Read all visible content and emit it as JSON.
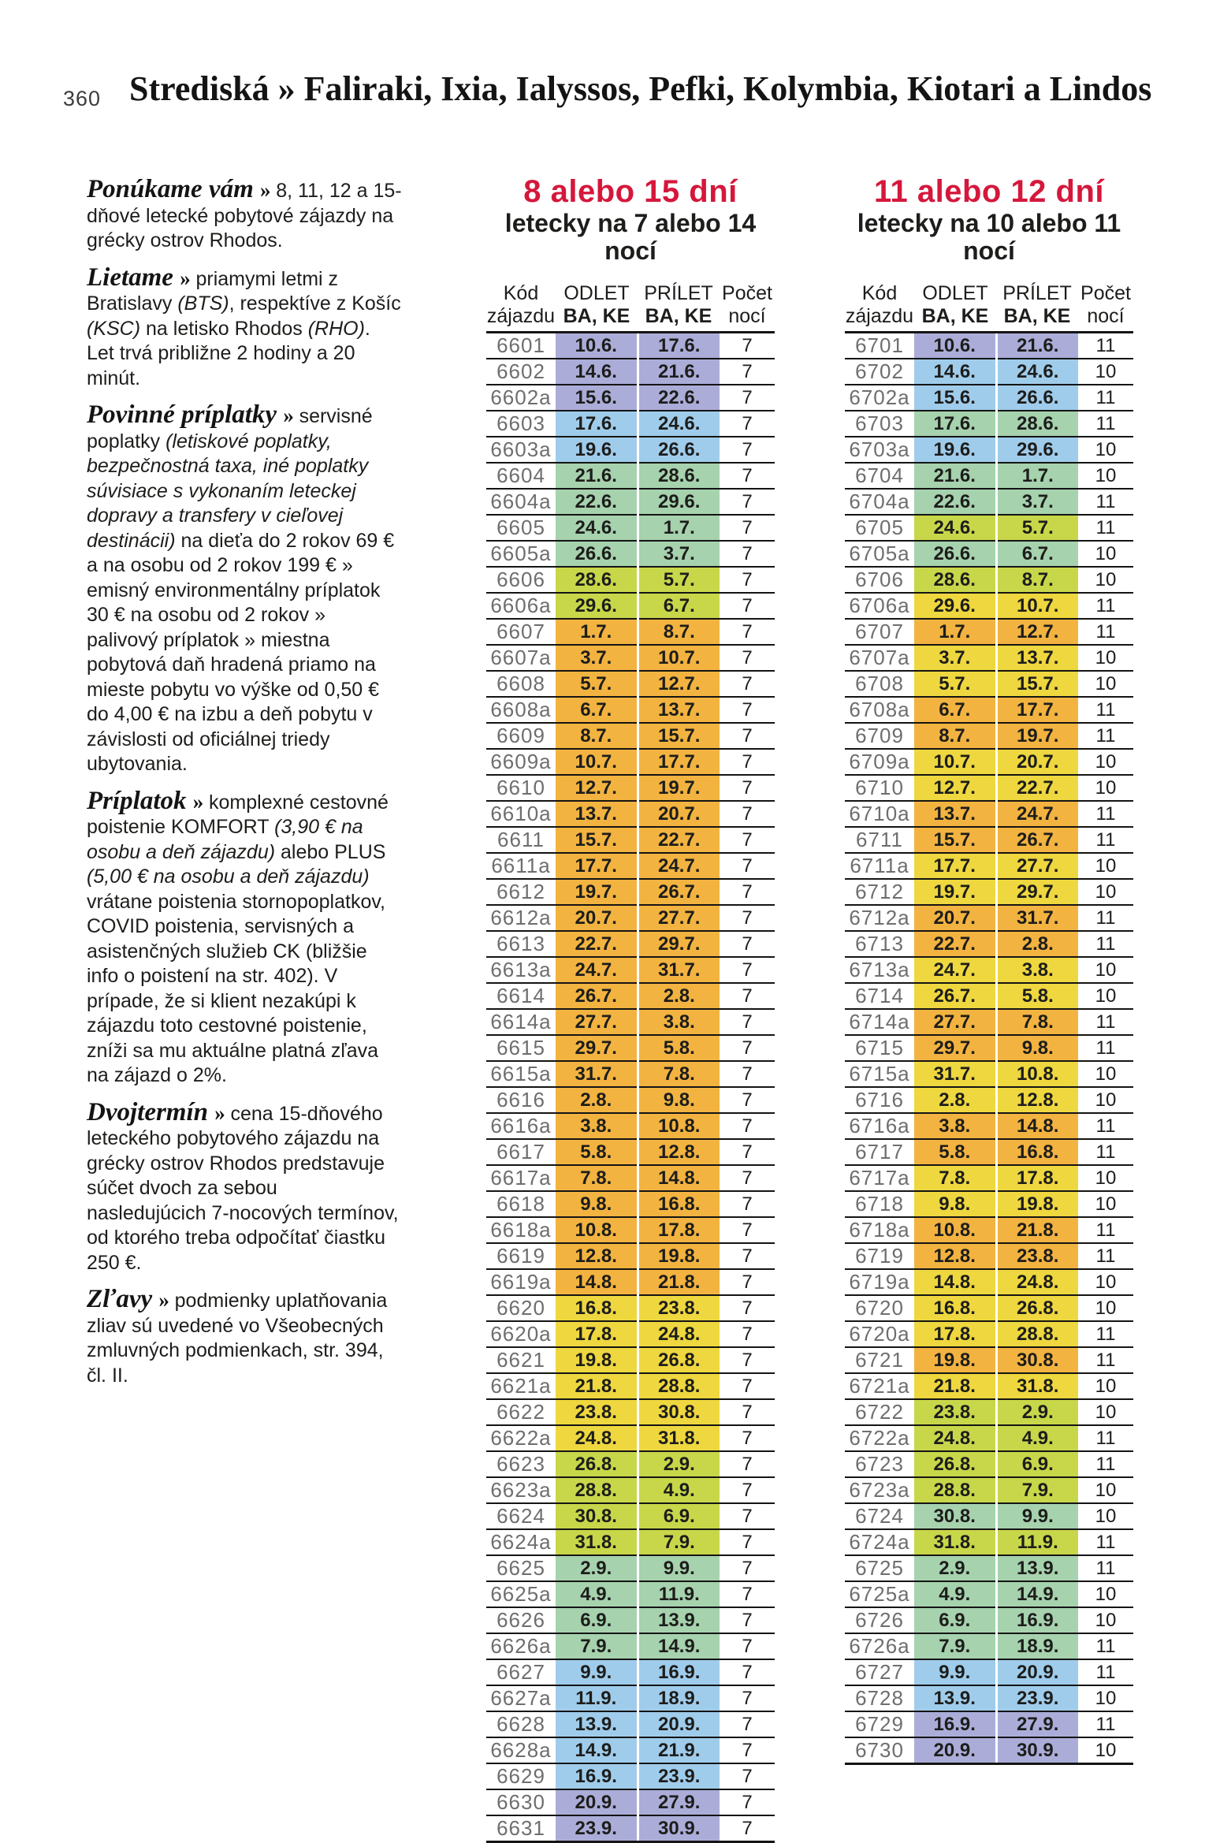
{
  "page": {
    "number": "360",
    "title": "Strediská » Faliraki, Ixia, Ialyssos, Pefki, Kolymbia, Kiotari a Lindos"
  },
  "accent_colors": {
    "title_red": "#d5173b",
    "rule_black": "#141414",
    "code_gray": "#6e6e6e"
  },
  "season_colors": {
    "lavender": "#abadd8",
    "blue": "#a0cceb",
    "green": "#a6d2ae",
    "yellowgreen": "#c8d74a",
    "yellow": "#eed73f",
    "orange": "#f2b340"
  },
  "info_sections": [
    {
      "label": "Ponúkame vám",
      "sep": "»",
      "body": [
        {
          "t": "8, 11, 12 a 15-dňové letecké pobytové zájazdy na grécky ostrov Rhodos.",
          "i": false
        }
      ]
    },
    {
      "label": "Lietame",
      "sep": "»",
      "body": [
        {
          "t": "priamymi letmi z Bratislavy ",
          "i": false
        },
        {
          "t": "(BTS)",
          "i": true
        },
        {
          "t": ", respektíve z Košíc ",
          "i": false
        },
        {
          "t": "(KSC)",
          "i": true
        },
        {
          "t": " na letisko Rhodos ",
          "i": false
        },
        {
          "t": "(RHO)",
          "i": true
        },
        {
          "t": ". Let trvá približne 2 hodiny a 20 minút.",
          "i": false
        }
      ]
    },
    {
      "label": "Povinné príplatky",
      "sep": "»",
      "body": [
        {
          "t": "servisné poplatky ",
          "i": false
        },
        {
          "t": "(letiskové poplatky, bezpečnostná taxa, iné poplatky súvisiace s vykonaním leteckej dopravy a transfery v cieľovej destinácii)",
          "i": true
        },
        {
          "t": " na dieťa do 2 rokov 69 € a na osobu od 2 rokov 199 € » emisný environmentálny príplatok 30 € na osobu od 2 rokov » palivový príplatok » miestna pobytová daň hradená priamo na mieste pobytu vo výške od 0,50 € do 4,00 € na izbu a deň pobytu v závislosti od oficiálnej triedy ubytovania.",
          "i": false
        }
      ]
    },
    {
      "label": "Príplatok",
      "sep": "»",
      "body": [
        {
          "t": "komplexné cestovné poistenie KOMFORT ",
          "i": false
        },
        {
          "t": "(3,90 € na osobu a deň zájazdu)",
          "i": true
        },
        {
          "t": " alebo PLUS ",
          "i": false
        },
        {
          "t": "(5,00 € na osobu a deň zájazdu)",
          "i": true
        },
        {
          "t": " vrátane poistenia stornopoplatkov, COVID poistenia, servisných a asistenčných služieb CK (bližšie info o poistení na str. 402). V prípade, že si klient nezakúpi k zájazdu toto cestovné poistenie, zníži sa mu aktuálne platná zľava na zájazd o 2%.",
          "i": false
        }
      ]
    },
    {
      "label": "Dvojtermín",
      "sep": "»",
      "body": [
        {
          "t": "cena 15-dňového leteckého pobytového zájazdu na grécky ostrov Rhodos predstavuje súčet dvoch za sebou nasledujúcich 7-nocových termínov, od ktorého treba odpočítať čiastku 250 €.",
          "i": false
        }
      ]
    },
    {
      "label": "Zľavy",
      "sep": "»",
      "body": [
        {
          "t": "podmienky uplatňovania zliav sú uvedené vo Všeobecných zmluvných podmienkach, str. 394, čl. II.",
          "i": false
        }
      ]
    }
  ],
  "tables": [
    {
      "title": "8 alebo 15 dní",
      "subtitle": "letecky na 7 alebo 14 nocí",
      "columns": {
        "code": [
          "Kód",
          "zájazdu"
        ],
        "depart": [
          "ODLET",
          "BA, KE"
        ],
        "arrive": [
          "PRÍLET",
          "BA, KE"
        ],
        "nights": [
          "Počet",
          "nocí"
        ]
      },
      "rows": [
        [
          "6601",
          "10.6.",
          "17.6.",
          "7",
          "lavender"
        ],
        [
          "6602",
          "14.6.",
          "21.6.",
          "7",
          "lavender"
        ],
        [
          "6602a",
          "15.6.",
          "22.6.",
          "7",
          "lavender"
        ],
        [
          "6603",
          "17.6.",
          "24.6.",
          "7",
          "blue"
        ],
        [
          "6603a",
          "19.6.",
          "26.6.",
          "7",
          "blue"
        ],
        [
          "6604",
          "21.6.",
          "28.6.",
          "7",
          "green"
        ],
        [
          "6604a",
          "22.6.",
          "29.6.",
          "7",
          "green"
        ],
        [
          "6605",
          "24.6.",
          "1.7.",
          "7",
          "green"
        ],
        [
          "6605a",
          "26.6.",
          "3.7.",
          "7",
          "green"
        ],
        [
          "6606",
          "28.6.",
          "5.7.",
          "7",
          "yellowgreen"
        ],
        [
          "6606a",
          "29.6.",
          "6.7.",
          "7",
          "yellowgreen"
        ],
        [
          "6607",
          "1.7.",
          "8.7.",
          "7",
          "orange"
        ],
        [
          "6607a",
          "3.7.",
          "10.7.",
          "7",
          "orange"
        ],
        [
          "6608",
          "5.7.",
          "12.7.",
          "7",
          "orange"
        ],
        [
          "6608a",
          "6.7.",
          "13.7.",
          "7",
          "orange"
        ],
        [
          "6609",
          "8.7.",
          "15.7.",
          "7",
          "orange"
        ],
        [
          "6609a",
          "10.7.",
          "17.7.",
          "7",
          "orange"
        ],
        [
          "6610",
          "12.7.",
          "19.7.",
          "7",
          "orange"
        ],
        [
          "6610a",
          "13.7.",
          "20.7.",
          "7",
          "orange"
        ],
        [
          "6611",
          "15.7.",
          "22.7.",
          "7",
          "orange"
        ],
        [
          "6611a",
          "17.7.",
          "24.7.",
          "7",
          "orange"
        ],
        [
          "6612",
          "19.7.",
          "26.7.",
          "7",
          "orange"
        ],
        [
          "6612a",
          "20.7.",
          "27.7.",
          "7",
          "orange"
        ],
        [
          "6613",
          "22.7.",
          "29.7.",
          "7",
          "orange"
        ],
        [
          "6613a",
          "24.7.",
          "31.7.",
          "7",
          "orange"
        ],
        [
          "6614",
          "26.7.",
          "2.8.",
          "7",
          "orange"
        ],
        [
          "6614a",
          "27.7.",
          "3.8.",
          "7",
          "orange"
        ],
        [
          "6615",
          "29.7.",
          "5.8.",
          "7",
          "orange"
        ],
        [
          "6615a",
          "31.7.",
          "7.8.",
          "7",
          "orange"
        ],
        [
          "6616",
          "2.8.",
          "9.8.",
          "7",
          "orange"
        ],
        [
          "6616a",
          "3.8.",
          "10.8.",
          "7",
          "orange"
        ],
        [
          "6617",
          "5.8.",
          "12.8.",
          "7",
          "orange"
        ],
        [
          "6617a",
          "7.8.",
          "14.8.",
          "7",
          "orange"
        ],
        [
          "6618",
          "9.8.",
          "16.8.",
          "7",
          "orange"
        ],
        [
          "6618a",
          "10.8.",
          "17.8.",
          "7",
          "orange"
        ],
        [
          "6619",
          "12.8.",
          "19.8.",
          "7",
          "orange"
        ],
        [
          "6619a",
          "14.8.",
          "21.8.",
          "7",
          "orange"
        ],
        [
          "6620",
          "16.8.",
          "23.8.",
          "7",
          "yellow"
        ],
        [
          "6620a",
          "17.8.",
          "24.8.",
          "7",
          "yellow"
        ],
        [
          "6621",
          "19.8.",
          "26.8.",
          "7",
          "yellow"
        ],
        [
          "6621a",
          "21.8.",
          "28.8.",
          "7",
          "yellow"
        ],
        [
          "6622",
          "23.8.",
          "30.8.",
          "7",
          "yellow"
        ],
        [
          "6622a",
          "24.8.",
          "31.8.",
          "7",
          "yellow"
        ],
        [
          "6623",
          "26.8.",
          "2.9.",
          "7",
          "yellowgreen"
        ],
        [
          "6623a",
          "28.8.",
          "4.9.",
          "7",
          "yellowgreen"
        ],
        [
          "6624",
          "30.8.",
          "6.9.",
          "7",
          "yellowgreen"
        ],
        [
          "6624a",
          "31.8.",
          "7.9.",
          "7",
          "yellowgreen"
        ],
        [
          "6625",
          "2.9.",
          "9.9.",
          "7",
          "green"
        ],
        [
          "6625a",
          "4.9.",
          "11.9.",
          "7",
          "green"
        ],
        [
          "6626",
          "6.9.",
          "13.9.",
          "7",
          "green"
        ],
        [
          "6626a",
          "7.9.",
          "14.9.",
          "7",
          "green"
        ],
        [
          "6627",
          "9.9.",
          "16.9.",
          "7",
          "blue"
        ],
        [
          "6627a",
          "11.9.",
          "18.9.",
          "7",
          "blue"
        ],
        [
          "6628",
          "13.9.",
          "20.9.",
          "7",
          "blue"
        ],
        [
          "6628a",
          "14.9.",
          "21.9.",
          "7",
          "blue"
        ],
        [
          "6629",
          "16.9.",
          "23.9.",
          "7",
          "blue"
        ],
        [
          "6630",
          "20.9.",
          "27.9.",
          "7",
          "lavender"
        ],
        [
          "6631",
          "23.9.",
          "30.9.",
          "7",
          "lavender"
        ]
      ]
    },
    {
      "title": "11 alebo 12 dní",
      "subtitle": "letecky na 10 alebo 11 nocí",
      "columns": {
        "code": [
          "Kód",
          "zájazdu"
        ],
        "depart": [
          "ODLET",
          "BA, KE"
        ],
        "arrive": [
          "PRÍLET",
          "BA, KE"
        ],
        "nights": [
          "Počet",
          "nocí"
        ]
      },
      "rows": [
        [
          "6701",
          "10.6.",
          "21.6.",
          "11",
          "lavender"
        ],
        [
          "6702",
          "14.6.",
          "24.6.",
          "10",
          "blue"
        ],
        [
          "6702a",
          "15.6.",
          "26.6.",
          "11",
          "blue"
        ],
        [
          "6703",
          "17.6.",
          "28.6.",
          "11",
          "green"
        ],
        [
          "6703a",
          "19.6.",
          "29.6.",
          "10",
          "blue"
        ],
        [
          "6704",
          "21.6.",
          "1.7.",
          "10",
          "green"
        ],
        [
          "6704a",
          "22.6.",
          "3.7.",
          "11",
          "green"
        ],
        [
          "6705",
          "24.6.",
          "5.7.",
          "11",
          "yellowgreen"
        ],
        [
          "6705a",
          "26.6.",
          "6.7.",
          "10",
          "green"
        ],
        [
          "6706",
          "28.6.",
          "8.7.",
          "10",
          "yellowgreen"
        ],
        [
          "6706a",
          "29.6.",
          "10.7.",
          "11",
          "yellow"
        ],
        [
          "6707",
          "1.7.",
          "12.7.",
          "11",
          "orange"
        ],
        [
          "6707a",
          "3.7.",
          "13.7.",
          "10",
          "yellow"
        ],
        [
          "6708",
          "5.7.",
          "15.7.",
          "10",
          "yellow"
        ],
        [
          "6708a",
          "6.7.",
          "17.7.",
          "11",
          "orange"
        ],
        [
          "6709",
          "8.7.",
          "19.7.",
          "11",
          "orange"
        ],
        [
          "6709a",
          "10.7.",
          "20.7.",
          "10",
          "yellow"
        ],
        [
          "6710",
          "12.7.",
          "22.7.",
          "10",
          "yellow"
        ],
        [
          "6710a",
          "13.7.",
          "24.7.",
          "11",
          "orange"
        ],
        [
          "6711",
          "15.7.",
          "26.7.",
          "11",
          "orange"
        ],
        [
          "6711a",
          "17.7.",
          "27.7.",
          "10",
          "yellow"
        ],
        [
          "6712",
          "19.7.",
          "29.7.",
          "10",
          "yellow"
        ],
        [
          "6712a",
          "20.7.",
          "31.7.",
          "11",
          "orange"
        ],
        [
          "6713",
          "22.7.",
          "2.8.",
          "11",
          "orange"
        ],
        [
          "6713a",
          "24.7.",
          "3.8.",
          "10",
          "yellow"
        ],
        [
          "6714",
          "26.7.",
          "5.8.",
          "10",
          "yellow"
        ],
        [
          "6714a",
          "27.7.",
          "7.8.",
          "11",
          "orange"
        ],
        [
          "6715",
          "29.7.",
          "9.8.",
          "11",
          "orange"
        ],
        [
          "6715a",
          "31.7.",
          "10.8.",
          "10",
          "yellow"
        ],
        [
          "6716",
          "2.8.",
          "12.8.",
          "10",
          "yellow"
        ],
        [
          "6716a",
          "3.8.",
          "14.8.",
          "11",
          "orange"
        ],
        [
          "6717",
          "5.8.",
          "16.8.",
          "11",
          "orange"
        ],
        [
          "6717a",
          "7.8.",
          "17.8.",
          "10",
          "yellow"
        ],
        [
          "6718",
          "9.8.",
          "19.8.",
          "10",
          "yellow"
        ],
        [
          "6718a",
          "10.8.",
          "21.8.",
          "11",
          "orange"
        ],
        [
          "6719",
          "12.8.",
          "23.8.",
          "11",
          "orange"
        ],
        [
          "6719a",
          "14.8.",
          "24.8.",
          "10",
          "yellow"
        ],
        [
          "6720",
          "16.8.",
          "26.8.",
          "10",
          "yellow"
        ],
        [
          "6720a",
          "17.8.",
          "28.8.",
          "11",
          "yellow"
        ],
        [
          "6721",
          "19.8.",
          "30.8.",
          "11",
          "orange"
        ],
        [
          "6721a",
          "21.8.",
          "31.8.",
          "10",
          "yellow"
        ],
        [
          "6722",
          "23.8.",
          "2.9.",
          "10",
          "yellowgreen"
        ],
        [
          "6722a",
          "24.8.",
          "4.9.",
          "11",
          "yellowgreen"
        ],
        [
          "6723",
          "26.8.",
          "6.9.",
          "11",
          "yellowgreen"
        ],
        [
          "6723a",
          "28.8.",
          "7.9.",
          "10",
          "yellowgreen"
        ],
        [
          "6724",
          "30.8.",
          "9.9.",
          "10",
          "green"
        ],
        [
          "6724a",
          "31.8.",
          "11.9.",
          "11",
          "yellowgreen"
        ],
        [
          "6725",
          "2.9.",
          "13.9.",
          "11",
          "green"
        ],
        [
          "6725a",
          "4.9.",
          "14.9.",
          "10",
          "green"
        ],
        [
          "6726",
          "6.9.",
          "16.9.",
          "10",
          "green"
        ],
        [
          "6726a",
          "7.9.",
          "18.9.",
          "11",
          "green"
        ],
        [
          "6727",
          "9.9.",
          "20.9.",
          "11",
          "blue"
        ],
        [
          "6728",
          "13.9.",
          "23.9.",
          "10",
          "blue"
        ],
        [
          "6729",
          "16.9.",
          "27.9.",
          "11",
          "lavender"
        ],
        [
          "6730",
          "20.9.",
          "30.9.",
          "10",
          "lavender"
        ]
      ]
    }
  ]
}
